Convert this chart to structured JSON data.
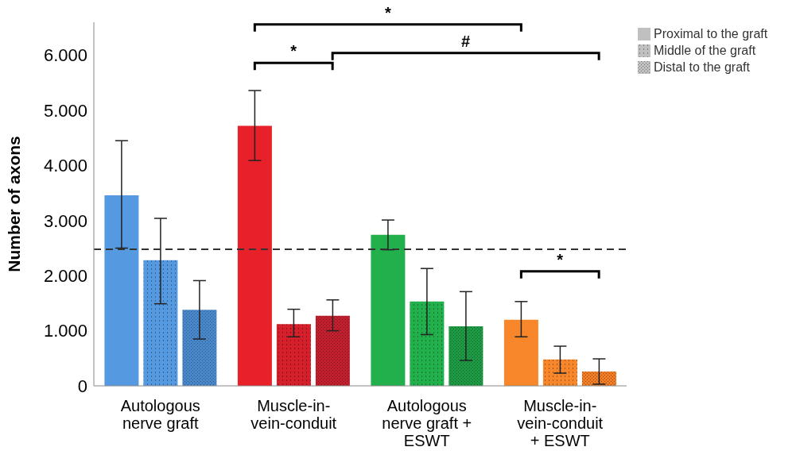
{
  "chart_data": {
    "type": "bar",
    "ylabel": "Number of axons",
    "categories": [
      "Autologous nerve graft",
      "Muscle-in-vein-conduit",
      "Autologous nerve graft + ESWT",
      "Muscle-in-vein-conduit + ESWT"
    ],
    "series": [
      {
        "name": "Proximal to the graft",
        "color": "#c0c0c0",
        "colors": [
          "#5599e0",
          "#e8202a",
          "#22b04c",
          "#f7872a"
        ],
        "values": [
          3460,
          4720,
          2740,
          1200
        ],
        "errors": [
          [
            2500,
            4450
          ],
          [
            4090,
            5360
          ],
          [
            2470,
            3010
          ],
          [
            890,
            1530
          ]
        ]
      },
      {
        "name": "Middle of the graft",
        "color": "#c0c0c0",
        "colors": [
          "#5599e0",
          "#d51f2b",
          "#22b04c",
          "#f7872a"
        ],
        "values": [
          2280,
          1120,
          1530,
          480
        ],
        "errors": [
          [
            1490,
            3040
          ],
          [
            890,
            1390
          ],
          [
            930,
            2130
          ],
          [
            230,
            720
          ]
        ]
      },
      {
        "name": "Distal to the graft",
        "color": "#c0c0c0",
        "colors": [
          "#4a88cc",
          "#c2202e",
          "#1e9a45",
          "#f07c24"
        ],
        "values": [
          1380,
          1270,
          1080,
          260
        ],
        "errors": [
          [
            850,
            1910
          ],
          [
            1000,
            1560
          ],
          [
            460,
            1710
          ],
          [
            30,
            490
          ]
        ]
      }
    ],
    "ylim": [
      0,
      6600
    ],
    "yticks": [
      {
        "value": 0,
        "label": "0"
      },
      {
        "value": 1000,
        "label": "1.000"
      },
      {
        "value": 2000,
        "label": "2.000"
      },
      {
        "value": 3000,
        "label": "3.000"
      },
      {
        "value": 4000,
        "label": "4.000"
      },
      {
        "value": 5000,
        "label": "5.000"
      },
      {
        "value": 6000,
        "label": "6.000"
      }
    ],
    "ref_lines": [
      {
        "axis": "y",
        "value": 2480,
        "color": "#333333",
        "line_style": "dashed"
      }
    ],
    "annotations": [
      "*",
      "*",
      "#",
      "*"
    ],
    "legend": "top right",
    "grid": false
  }
}
